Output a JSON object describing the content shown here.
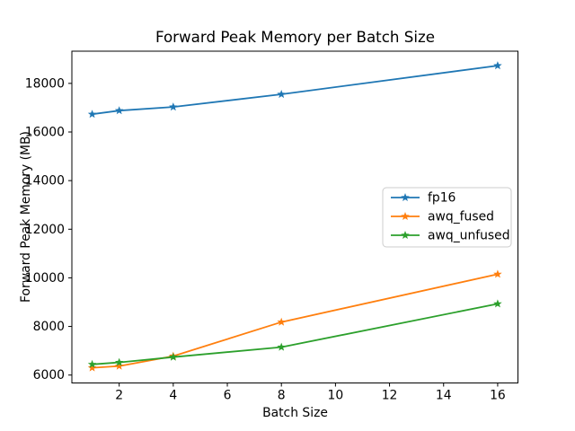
{
  "figure": {
    "background": "#ffffff",
    "frame_color": "#000000"
  },
  "chart_data": {
    "type": "line",
    "title": "Forward Peak Memory per Batch Size",
    "xlabel": "Batch Size",
    "ylabel": "Forward Peak Memory (MB)",
    "x": [
      1,
      2,
      4,
      8,
      16
    ],
    "series": [
      {
        "name": "fp16",
        "color": "#1f77b4",
        "marker": "star",
        "values": [
          16730,
          16880,
          17030,
          17550,
          18730
        ]
      },
      {
        "name": "awq_fused",
        "color": "#ff7f0e",
        "marker": "star",
        "values": [
          6300,
          6370,
          6780,
          8180,
          10150
        ]
      },
      {
        "name": "awq_unfused",
        "color": "#2ca02c",
        "marker": "star",
        "values": [
          6440,
          6520,
          6740,
          7150,
          8930
        ]
      }
    ],
    "xticks": [
      2,
      4,
      6,
      8,
      10,
      12,
      14,
      16
    ],
    "yticks": [
      6000,
      8000,
      10000,
      12000,
      14000,
      16000,
      18000
    ],
    "xlim": [
      0.25,
      16.75
    ],
    "ylim": [
      5675,
      19325
    ],
    "grid": false,
    "legend": {
      "position": "center-right",
      "entries": [
        "fp16",
        "awq_fused",
        "awq_unfused"
      ]
    }
  }
}
